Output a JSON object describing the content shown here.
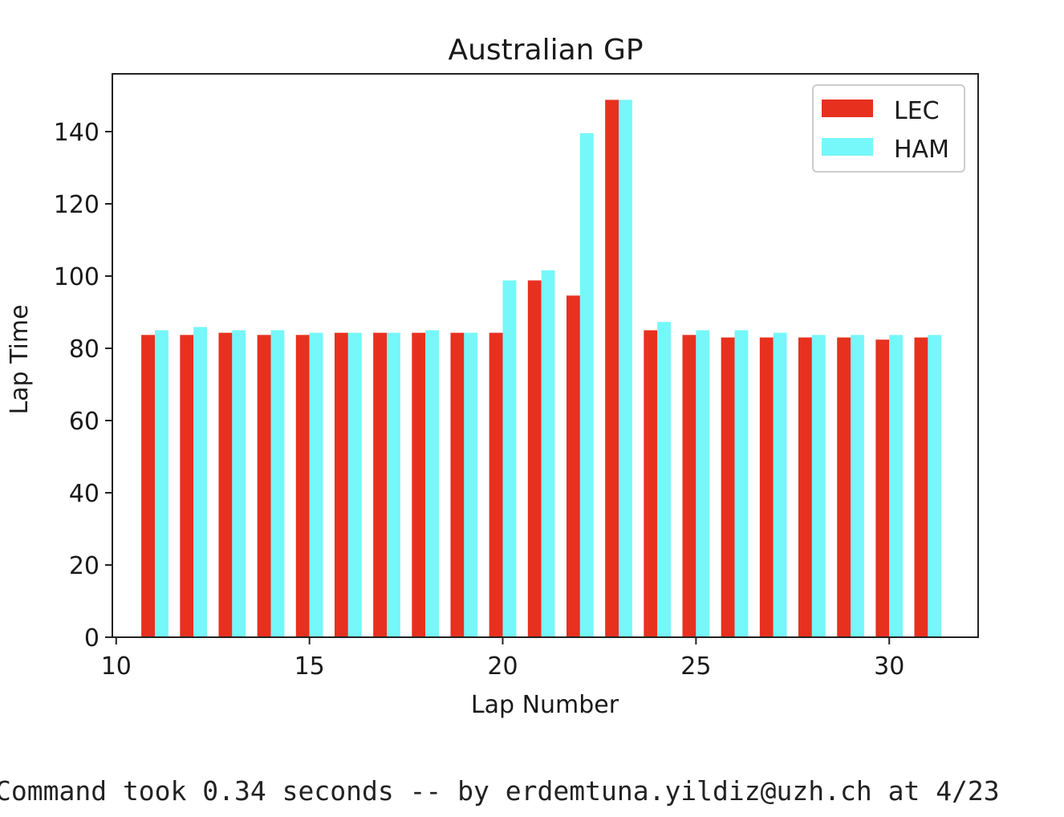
{
  "chart_data": {
    "type": "bar",
    "title": "Australian GP",
    "xlabel": "Lap Number",
    "ylabel": "Lap Time",
    "x": [
      11,
      12,
      13,
      14,
      15,
      16,
      17,
      18,
      19,
      20,
      21,
      22,
      23,
      24,
      25,
      26,
      27,
      28,
      29,
      30,
      31
    ],
    "xlim": [
      9.9,
      32.3
    ],
    "ylim": [
      0,
      156
    ],
    "xticks": [
      10,
      15,
      20,
      25,
      30
    ],
    "yticks": [
      0,
      20,
      40,
      60,
      80,
      100,
      120,
      140
    ],
    "grid": false,
    "legend_position": "top-right",
    "series": [
      {
        "name": "LEC",
        "color": "#e8301e",
        "values": [
          83.7,
          83.7,
          84.3,
          83.7,
          83.7,
          84.3,
          84.3,
          84.3,
          84.3,
          84.3,
          98.8,
          94.6,
          148.8,
          85.0,
          83.7,
          83.0,
          83.0,
          83.0,
          83.0,
          82.4,
          83.0
        ]
      },
      {
        "name": "HAM",
        "color": "#76f7f9",
        "values": [
          85.0,
          85.9,
          85.0,
          85.0,
          84.3,
          84.3,
          84.3,
          85.0,
          84.3,
          98.8,
          101.6,
          139.6,
          148.8,
          87.3,
          85.0,
          85.0,
          84.3,
          83.7,
          83.7,
          83.7,
          83.7
        ]
      }
    ]
  },
  "footer": {
    "text": "Command took 0.34 seconds -- by erdemtuna.yildiz@uzh.ch at 4/23"
  }
}
